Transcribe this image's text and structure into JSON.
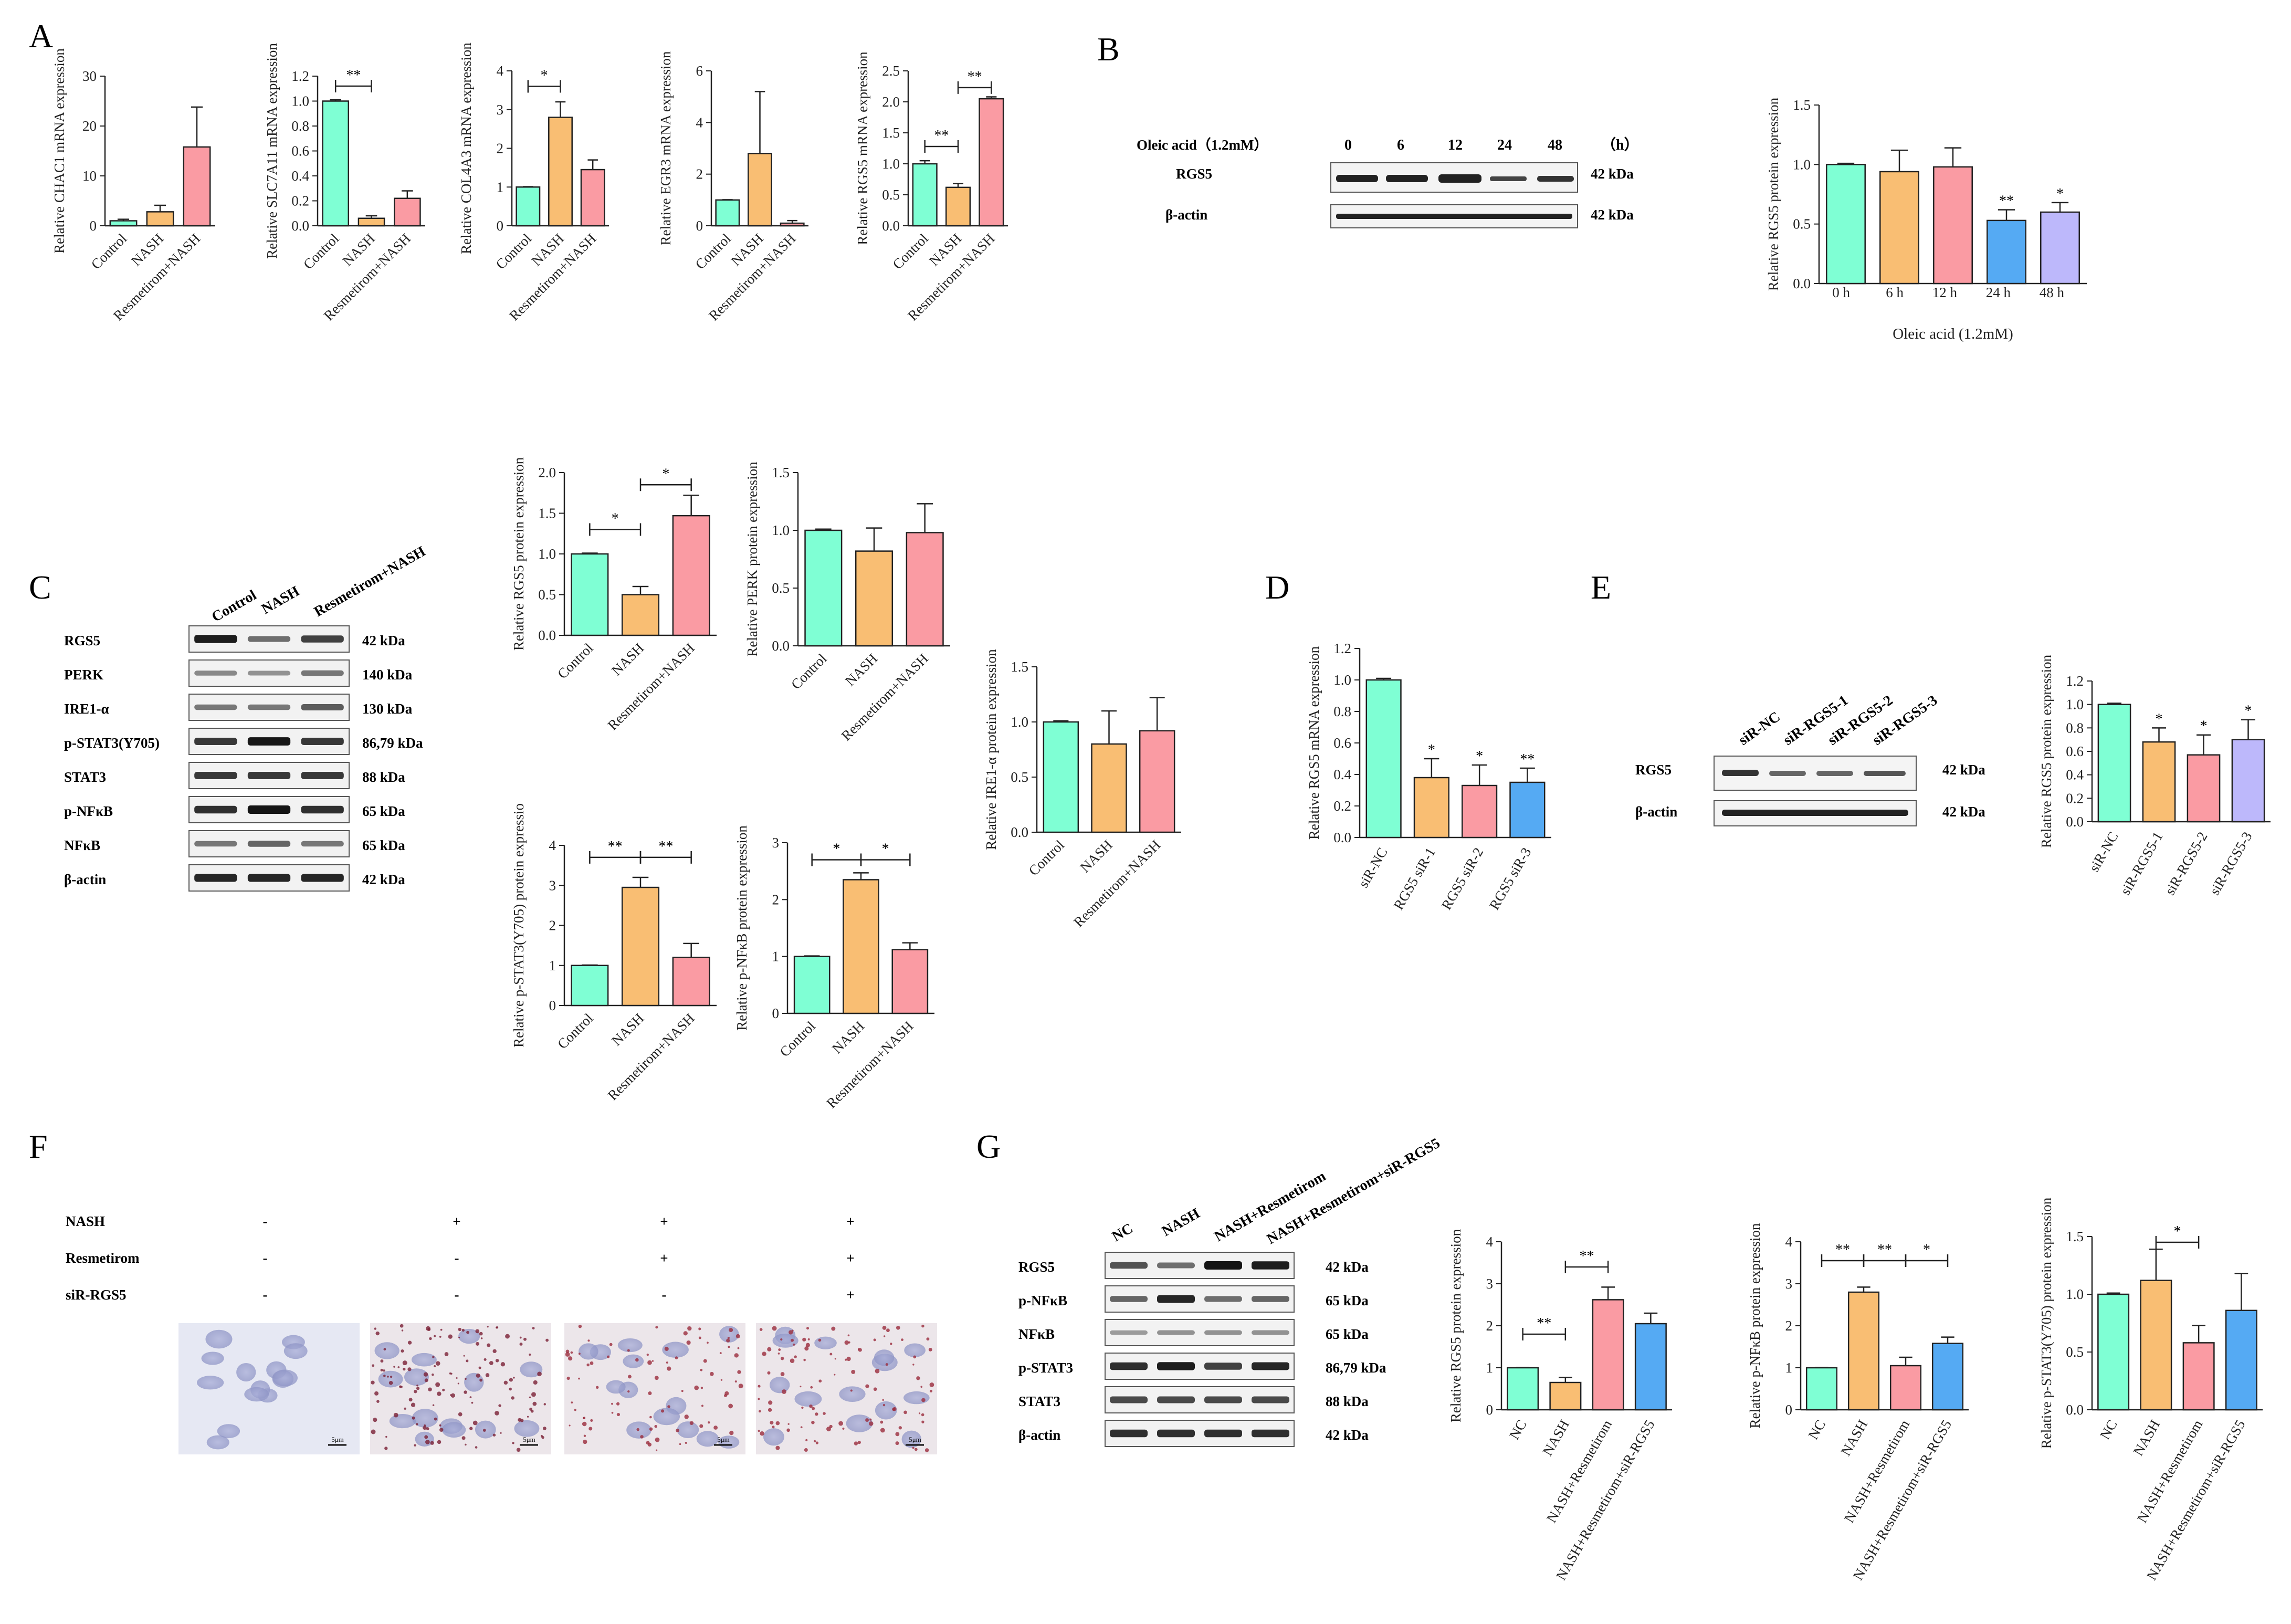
{
  "colors": {
    "control": "#7FFFD4",
    "nash": "#F9BE73",
    "resmetirom_nash": "#FA9BA3",
    "blue": "#55AAF3",
    "lavender": "#BDB8FB"
  },
  "panels": {
    "A": "A",
    "B": "B",
    "C": "C",
    "D": "D",
    "E": "E",
    "F": "F",
    "G": "G"
  },
  "panel_B_blot": {
    "treatment_label": "Oleic acid（1.2mM）",
    "times": [
      "0",
      "6",
      "12",
      "24",
      "48"
    ],
    "unit": "（h）",
    "rows": [
      {
        "label": "RGS5",
        "kda": "42 kDa"
      },
      {
        "label": "β-actin",
        "kda": "42 kDa"
      }
    ]
  },
  "panel_C_blot": {
    "lanes": [
      "Control",
      "NASH",
      "Resmetirom+NASH"
    ],
    "rows": [
      {
        "label": "RGS5",
        "kda": "42 kDa"
      },
      {
        "label": "PERK",
        "kda": "140 kDa"
      },
      {
        "label": "IRE1-α",
        "kda": "130 kDa"
      },
      {
        "label": "p-STAT3(Y705)",
        "kda": "86,79 kDa"
      },
      {
        "label": "STAT3",
        "kda": "88 kDa"
      },
      {
        "label": "p-NFκB",
        "kda": "65 kDa"
      },
      {
        "label": "NFκB",
        "kda": "65 kDa"
      },
      {
        "label": "β-actin",
        "kda": "42 kDa"
      }
    ]
  },
  "panel_E_blot": {
    "lanes": [
      "siR-NC",
      "siR-RGS5-1",
      "siR-RGS5-2",
      "siR-RGS5-3"
    ],
    "rows": [
      {
        "label": "RGS5",
        "kda": "42 kDa"
      },
      {
        "label": "β-actin",
        "kda": "42 kDa"
      }
    ]
  },
  "panel_F": {
    "conditions": [
      {
        "label": "NASH",
        "values": [
          "-",
          "+",
          "+",
          "+"
        ]
      },
      {
        "label": "Resmetirom",
        "values": [
          "-",
          "-",
          "+",
          "+"
        ]
      },
      {
        "label": "siR-RGS5",
        "values": [
          "-",
          "-",
          "-",
          "+"
        ]
      }
    ],
    "scale_bar": "5μm"
  },
  "panel_G_blot": {
    "lanes": [
      "NC",
      "NASH",
      "NASH+Resmetirom",
      "NASH+Resmetirom+siR-RGS5"
    ],
    "rows": [
      {
        "label": "RGS5",
        "kda": "42 kDa"
      },
      {
        "label": "p-NFκB",
        "kda": "65 kDa"
      },
      {
        "label": "NFκB",
        "kda": "65 kDa"
      },
      {
        "label": "p-STAT3",
        "kda": "86,79 kDa"
      },
      {
        "label": "STAT3",
        "kda": "88 kDa"
      },
      {
        "label": "β-actin",
        "kda": "42 kDa"
      }
    ]
  },
  "chart_data": [
    {
      "id": "A1",
      "type": "bar",
      "ylabel": "Relative CHAC1 mRNA expression",
      "categories": [
        "Control",
        "NASH",
        "Resmetirom+NASH"
      ],
      "values": [
        1,
        2.8,
        15.8
      ],
      "errors": [
        0.3,
        1.3,
        8
      ],
      "ylim": [
        0,
        30
      ],
      "yticks": [
        0,
        10,
        20,
        30
      ],
      "colors": [
        "#7FFFD4",
        "#F9BE73",
        "#FA9BA3"
      ],
      "sig": []
    },
    {
      "id": "A2",
      "type": "bar",
      "ylabel": "Relative SLC7A11 mRNA expression",
      "categories": [
        "Control",
        "NASH",
        "Resmetirom+NASH"
      ],
      "values": [
        1.0,
        0.06,
        0.22
      ],
      "errors": [
        0.01,
        0.02,
        0.06
      ],
      "ylim": [
        0,
        1.2
      ],
      "yticks": [
        0,
        0.2,
        0.4,
        0.6,
        0.8,
        1.0,
        1.2
      ],
      "ytickLabels": [
        "0.0",
        "0.2",
        "0.4",
        "0.6",
        "0.8",
        "1.0",
        "1.2"
      ],
      "colors": [
        "#7FFFD4",
        "#F9BE73",
        "#FA9BA3"
      ],
      "sig": [
        {
          "from": 0,
          "to": 1,
          "y": 1.12,
          "label": "**"
        }
      ]
    },
    {
      "id": "A3",
      "type": "bar",
      "ylabel": "Relative COL4A3 mRNA expression",
      "categories": [
        "Control",
        "NASH",
        "Resmetirom+NASH"
      ],
      "values": [
        1.0,
        2.8,
        1.45
      ],
      "errors": [
        0.01,
        0.4,
        0.25
      ],
      "ylim": [
        0,
        4
      ],
      "yticks": [
        0,
        1,
        2,
        3,
        4
      ],
      "colors": [
        "#7FFFD4",
        "#F9BE73",
        "#FA9BA3"
      ],
      "sig": [
        {
          "from": 0,
          "to": 1,
          "y": 3.6,
          "label": "*"
        }
      ]
    },
    {
      "id": "A4",
      "type": "bar",
      "ylabel": "Relative EGR3 mRNA expression",
      "categories": [
        "Control",
        "NASH",
        "Resmetirom+NASH"
      ],
      "values": [
        1.0,
        2.8,
        0.1
      ],
      "errors": [
        0.01,
        2.4,
        0.1
      ],
      "ylim": [
        0,
        6
      ],
      "yticks": [
        0,
        2,
        4,
        6
      ],
      "colors": [
        "#7FFFD4",
        "#F9BE73",
        "#FA9BA3"
      ],
      "sig": []
    },
    {
      "id": "A5",
      "type": "bar",
      "ylabel": "Relative RGS5 mRNA expression",
      "categories": [
        "Control",
        "NASH",
        "Resmetirom+NASH"
      ],
      "values": [
        1.0,
        0.62,
        2.05
      ],
      "errors": [
        0.05,
        0.06,
        0.03
      ],
      "ylim": [
        0,
        2.5
      ],
      "yticks": [
        0,
        0.5,
        1.0,
        1.5,
        2.0,
        2.5
      ],
      "ytickLabels": [
        "0.0",
        "0.5",
        "1.0",
        "1.5",
        "2.0",
        "2.5"
      ],
      "colors": [
        "#7FFFD4",
        "#F9BE73",
        "#FA9BA3"
      ],
      "sig": [
        {
          "from": 0,
          "to": 1,
          "y": 1.28,
          "label": "**"
        },
        {
          "from": 1,
          "to": 2,
          "y": 2.23,
          "label": "**"
        }
      ]
    },
    {
      "id": "B",
      "type": "bar",
      "ylabel": "Relative RGS5 protein expression",
      "xlabel": "Oleic acid (1.2mM)",
      "categories": [
        "0 h",
        "6 h",
        "12 h",
        "24 h",
        "48 h"
      ],
      "values": [
        1.0,
        0.94,
        0.98,
        0.53,
        0.6
      ],
      "errors": [
        0.01,
        0.18,
        0.16,
        0.09,
        0.08
      ],
      "ylim": [
        0,
        1.5
      ],
      "yticks": [
        0,
        0.5,
        1.0,
        1.5
      ],
      "ytickLabels": [
        "0.0",
        "0.5",
        "1.0",
        "1.5"
      ],
      "colors": [
        "#7FFFD4",
        "#F9BE73",
        "#FA9BA3",
        "#55AAF3",
        "#BDB8FB"
      ],
      "sig": [],
      "stars": [
        {
          "index": 3,
          "label": "**"
        },
        {
          "index": 4,
          "label": "*"
        }
      ]
    },
    {
      "id": "C1",
      "type": "bar",
      "ylabel": "Relative RGS5 protein expression",
      "categories": [
        "Control",
        "NASH",
        "Resmetirom+NASH"
      ],
      "values": [
        1.0,
        0.5,
        1.47
      ],
      "errors": [
        0.01,
        0.1,
        0.25
      ],
      "ylim": [
        0,
        2.0
      ],
      "yticks": [
        0,
        0.5,
        1.0,
        1.5,
        2.0
      ],
      "ytickLabels": [
        "0.0",
        "0.5",
        "1.0",
        "1.5",
        "2.0"
      ],
      "colors": [
        "#7FFFD4",
        "#F9BE73",
        "#FA9BA3"
      ],
      "sig": [
        {
          "from": 0,
          "to": 1,
          "y": 1.3,
          "label": "*"
        },
        {
          "from": 1,
          "to": 2,
          "y": 1.85,
          "label": "*"
        }
      ]
    },
    {
      "id": "C2",
      "type": "bar",
      "ylabel": "Relative PERK protein expression",
      "categories": [
        "Control",
        "NASH",
        "Resmetirom+NASH"
      ],
      "values": [
        1.0,
        0.82,
        0.98
      ],
      "errors": [
        0.01,
        0.2,
        0.25
      ],
      "ylim": [
        0,
        1.5
      ],
      "yticks": [
        0,
        0.5,
        1.0,
        1.5
      ],
      "ytickLabels": [
        "0.0",
        "0.5",
        "1.0",
        "1.5"
      ],
      "colors": [
        "#7FFFD4",
        "#F9BE73",
        "#FA9BA3"
      ],
      "sig": []
    },
    {
      "id": "C3",
      "type": "bar",
      "ylabel": "Relative IRE1-α protein expression",
      "categories": [
        "Control",
        "NASH",
        "Resmetirom+NASH"
      ],
      "values": [
        1.0,
        0.8,
        0.92
      ],
      "errors": [
        0.01,
        0.3,
        0.3
      ],
      "ylim": [
        0,
        1.5
      ],
      "yticks": [
        0,
        0.5,
        1.0,
        1.5
      ],
      "ytickLabels": [
        "0.0",
        "0.5",
        "1.0",
        "1.5"
      ],
      "colors": [
        "#7FFFD4",
        "#F9BE73",
        "#FA9BA3"
      ],
      "sig": []
    },
    {
      "id": "C4",
      "type": "bar",
      "ylabel": "Relative p-STAT3(Y705) protein expressio",
      "categories": [
        "Control",
        "NASH",
        "Resmetirom+NASH"
      ],
      "values": [
        1.0,
        2.95,
        1.2
      ],
      "errors": [
        0.01,
        0.25,
        0.35
      ],
      "ylim": [
        0,
        4
      ],
      "yticks": [
        0,
        1,
        2,
        3,
        4
      ],
      "colors": [
        "#7FFFD4",
        "#F9BE73",
        "#FA9BA3"
      ],
      "sig": [
        {
          "from": 0,
          "to": 1,
          "y": 3.7,
          "label": "**"
        },
        {
          "from": 1,
          "to": 2,
          "y": 3.7,
          "label": "**"
        }
      ]
    },
    {
      "id": "C5",
      "type": "bar",
      "ylabel": "Relative p-NFκB protein expression",
      "categories": [
        "Control",
        "NASH",
        "Resmetirom+NASH"
      ],
      "values": [
        1.0,
        2.35,
        1.12
      ],
      "errors": [
        0.01,
        0.12,
        0.12
      ],
      "ylim": [
        0,
        3
      ],
      "yticks": [
        0,
        1,
        2,
        3
      ],
      "colors": [
        "#7FFFD4",
        "#F9BE73",
        "#FA9BA3"
      ],
      "sig": [
        {
          "from": 0,
          "to": 1,
          "y": 2.7,
          "label": "*"
        },
        {
          "from": 1,
          "to": 2,
          "y": 2.7,
          "label": "*"
        }
      ]
    },
    {
      "id": "D",
      "type": "bar",
      "ylabel": "Relative RGS5 mRNA expression",
      "categories": [
        "siR-NC",
        "RGS5 siR-1",
        "RGS5 siR-2",
        "RGS5 siR-3"
      ],
      "values": [
        1.0,
        0.38,
        0.33,
        0.35
      ],
      "errors": [
        0.01,
        0.12,
        0.13,
        0.09
      ],
      "ylim": [
        0,
        1.2
      ],
      "yticks": [
        0,
        0.2,
        0.4,
        0.6,
        0.8,
        1.0,
        1.2
      ],
      "ytickLabels": [
        "0.0",
        "0.2",
        "0.4",
        "0.6",
        "0.8",
        "1.0",
        "1.2"
      ],
      "colors": [
        "#7FFFD4",
        "#F9BE73",
        "#FA9BA3",
        "#55AAF3"
      ],
      "sig": [],
      "stars": [
        {
          "index": 1,
          "label": "*"
        },
        {
          "index": 2,
          "label": "*"
        },
        {
          "index": 3,
          "label": "**"
        }
      ]
    },
    {
      "id": "E",
      "type": "bar",
      "ylabel": "Relative RGS5 protein expression",
      "categories": [
        "siR-NC",
        "siR-RGS5-1",
        "siR-RGS5-2",
        "siR-RGS5-3"
      ],
      "values": [
        1.0,
        0.68,
        0.57,
        0.7
      ],
      "errors": [
        0.01,
        0.12,
        0.17,
        0.17
      ],
      "ylim": [
        0,
        1.2
      ],
      "yticks": [
        0,
        0.2,
        0.4,
        0.6,
        0.8,
        1.0,
        1.2
      ],
      "ytickLabels": [
        "0.0",
        "0.2",
        "0.4",
        "0.6",
        "0.8",
        "1.0",
        "1.2"
      ],
      "colors": [
        "#7FFFD4",
        "#F9BE73",
        "#FA9BA3",
        "#BDB8FB"
      ],
      "sig": [],
      "stars": [
        {
          "index": 1,
          "label": "*"
        },
        {
          "index": 2,
          "label": "*"
        },
        {
          "index": 3,
          "label": "*"
        }
      ]
    },
    {
      "id": "G1",
      "type": "bar",
      "ylabel": "Relative RGS5 protein expression",
      "categories": [
        "NC",
        "NASH",
        "NASH+Resmetirom",
        "NASH+Resmetirom+siR-RGS5"
      ],
      "values": [
        1.0,
        0.65,
        2.62,
        2.05
      ],
      "errors": [
        0.01,
        0.12,
        0.3,
        0.25
      ],
      "ylim": [
        0,
        4
      ],
      "yticks": [
        0,
        1,
        2,
        3,
        4
      ],
      "colors": [
        "#7FFFD4",
        "#F9BE73",
        "#FA9BA3",
        "#55AAF3"
      ],
      "sig": [
        {
          "from": 0,
          "to": 1,
          "y": 1.8,
          "label": "**"
        },
        {
          "from": 1,
          "to": 2,
          "y": 3.4,
          "label": "**"
        }
      ]
    },
    {
      "id": "G2",
      "type": "bar",
      "ylabel": "Relative p-NFκB protein expression",
      "categories": [
        "NC",
        "NASH",
        "NASH+Resmetirom",
        "NASH+Resmetirom+siR-RGS5"
      ],
      "values": [
        1.0,
        2.8,
        1.05,
        1.58
      ],
      "errors": [
        0.01,
        0.12,
        0.2,
        0.15
      ],
      "ylim": [
        0,
        4
      ],
      "yticks": [
        0,
        1,
        2,
        3,
        4
      ],
      "colors": [
        "#7FFFD4",
        "#F9BE73",
        "#FA9BA3",
        "#55AAF3"
      ],
      "sig": [
        {
          "from": 0,
          "to": 1,
          "y": 3.55,
          "label": "**"
        },
        {
          "from": 1,
          "to": 2,
          "y": 3.55,
          "label": "**"
        },
        {
          "from": 2,
          "to": 3,
          "y": 3.55,
          "label": "*"
        }
      ]
    },
    {
      "id": "G3",
      "type": "bar",
      "ylabel": "Relative p-STAT3(Y705) protein expression",
      "categories": [
        "NC",
        "NASH",
        "NASH+Resmetirom",
        "NASH+Resmetirom+siR-RGS5"
      ],
      "values": [
        1.0,
        1.12,
        0.58,
        0.86
      ],
      "errors": [
        0.01,
        0.27,
        0.15,
        0.32
      ],
      "ylim": [
        0,
        1.5
      ],
      "yticks": [
        0,
        0.5,
        1.0,
        1.5
      ],
      "ytickLabels": [
        "0.0",
        "0.5",
        "1.0",
        "1.5"
      ],
      "colors": [
        "#7FFFD4",
        "#F9BE73",
        "#FA9BA3",
        "#55AAF3"
      ],
      "sig": [
        {
          "from": 1,
          "to": 2,
          "y": 1.45,
          "label": "*"
        }
      ]
    }
  ]
}
